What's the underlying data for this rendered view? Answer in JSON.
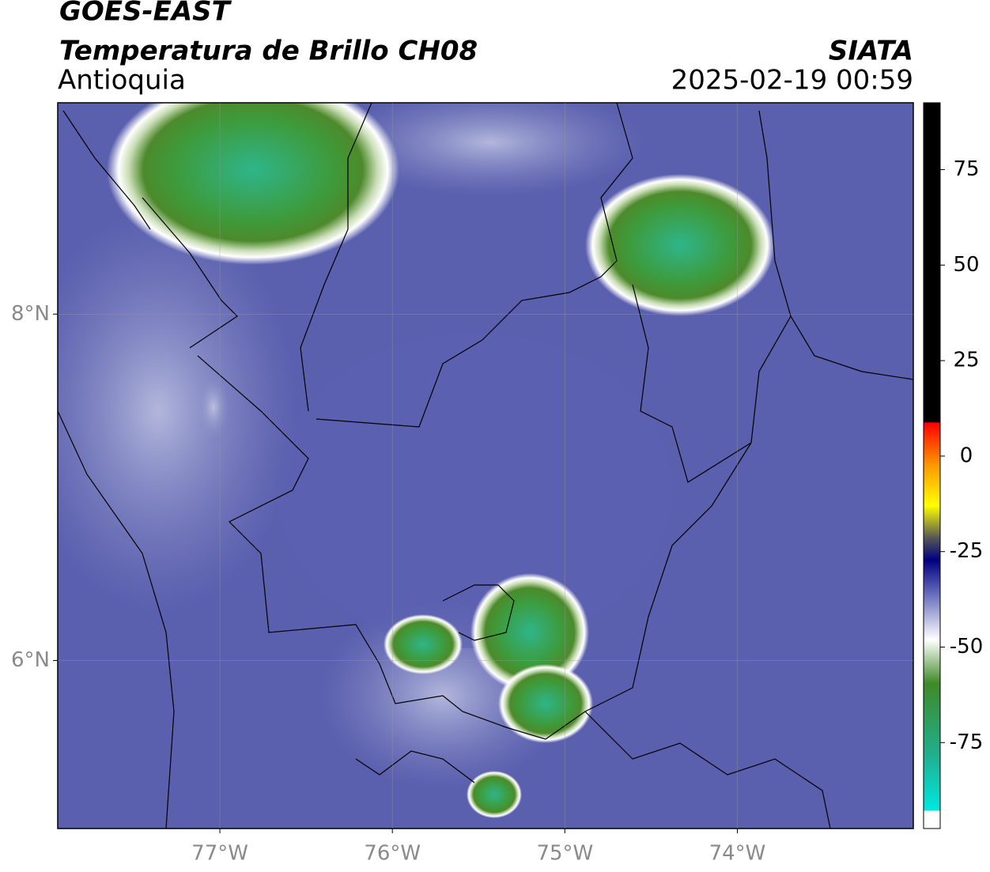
{
  "header": {
    "title": "GOES-EAST",
    "subtitle": "Temperatura de Brillo CH08",
    "region": "Antioquia",
    "source": "SIATA",
    "timestamp": "2025-02-19 00:59"
  },
  "map": {
    "xlim": [
      -77.94,
      -72.98
    ],
    "ylim": [
      5.03,
      9.22
    ],
    "xticks": [
      {
        "value": -77,
        "label": "77°W"
      },
      {
        "value": -76,
        "label": "76°W"
      },
      {
        "value": -75,
        "label": "75°W"
      },
      {
        "value": -74,
        "label": "74°W"
      }
    ],
    "yticks": [
      {
        "value": 8,
        "label": "8°N"
      },
      {
        "value": 6,
        "label": "6°N"
      }
    ],
    "grid": true
  },
  "colorbar": {
    "lim": [
      -97.5,
      92.5
    ],
    "ticks": [
      75,
      50,
      25,
      0,
      -25,
      -50,
      -75
    ]
  }
}
